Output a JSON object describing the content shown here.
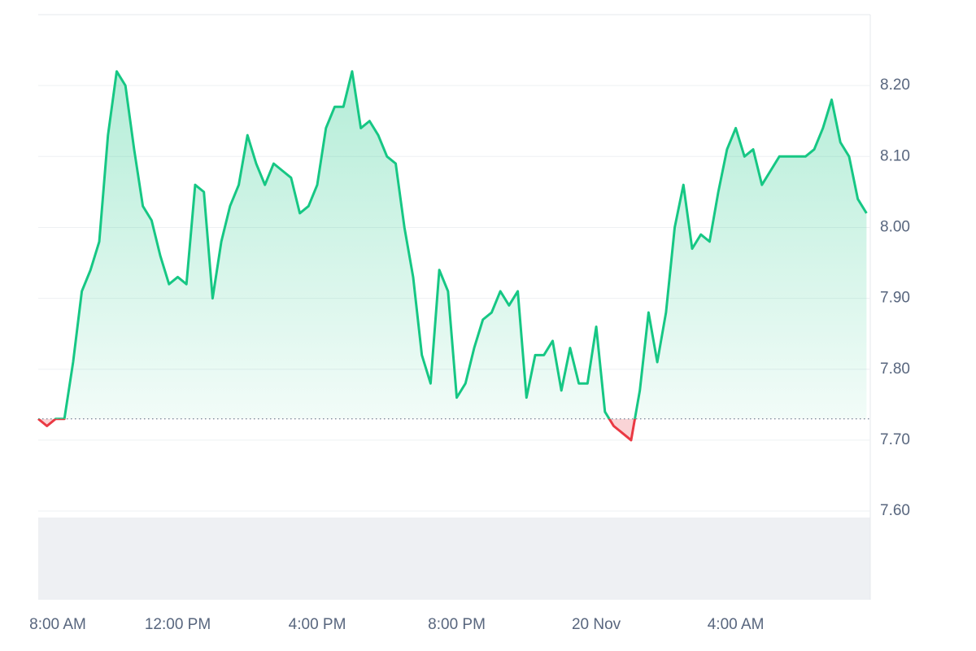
{
  "chart_data": {
    "type": "baseline-line",
    "categories": [
      "8:00 AM",
      null,
      null,
      null,
      null,
      null,
      null,
      null,
      null,
      null,
      null,
      null,
      null,
      null,
      null,
      null,
      "12:00 PM",
      null,
      null,
      null,
      null,
      null,
      null,
      null,
      null,
      null,
      null,
      null,
      null,
      null,
      null,
      null,
      "4:00 PM",
      null,
      null,
      null,
      null,
      null,
      null,
      null,
      null,
      null,
      null,
      null,
      null,
      null,
      null,
      null,
      "8:00 PM",
      null,
      null,
      null,
      null,
      null,
      null,
      null,
      null,
      null,
      null,
      null,
      null,
      null,
      null,
      null,
      "20 Nov",
      null,
      null,
      null,
      null,
      null,
      null,
      null,
      null,
      null,
      null,
      null,
      null,
      null,
      null,
      null,
      "4:00 AM",
      null,
      null,
      null,
      null,
      null,
      null,
      null,
      null,
      null,
      null,
      null,
      null,
      null,
      null,
      null
    ],
    "values": [
      7.73,
      7.72,
      7.73,
      7.73,
      7.81,
      7.91,
      7.94,
      7.98,
      8.13,
      8.22,
      8.2,
      8.11,
      8.03,
      8.01,
      7.96,
      7.92,
      7.93,
      7.92,
      8.06,
      8.05,
      7.9,
      7.98,
      8.03,
      8.06,
      8.13,
      8.09,
      8.06,
      8.09,
      8.08,
      8.07,
      8.02,
      8.03,
      8.06,
      8.14,
      8.17,
      8.17,
      8.22,
      8.14,
      8.15,
      8.13,
      8.1,
      8.09,
      8.0,
      7.93,
      7.82,
      7.78,
      7.94,
      7.91,
      7.76,
      7.78,
      7.83,
      7.87,
      7.88,
      7.91,
      7.89,
      7.91,
      7.76,
      7.82,
      7.82,
      7.84,
      7.77,
      7.83,
      7.78,
      7.78,
      7.86,
      7.74,
      7.72,
      7.71,
      7.7,
      7.77,
      7.88,
      7.81,
      7.88,
      8.0,
      8.06,
      7.97,
      7.99,
      7.98,
      8.05,
      8.11,
      8.14,
      8.1,
      8.11,
      8.06,
      8.08,
      8.1,
      8.1,
      8.1,
      8.1,
      8.11,
      8.14,
      8.18,
      8.12,
      8.1,
      8.04,
      8.02
    ],
    "baseline": 7.73,
    "color_up": "#16c784",
    "color_down": "#ea3943",
    "ylim": [
      7.475,
      8.3
    ],
    "yticks": [
      {
        "value": 7.6,
        "label": "7.60"
      },
      {
        "value": 7.7,
        "label": "7.70"
      },
      {
        "value": 7.8,
        "label": "7.80"
      },
      {
        "value": 7.9,
        "label": "7.90"
      },
      {
        "value": 8.0,
        "label": "8.00"
      },
      {
        "value": 8.1,
        "label": "8.10"
      },
      {
        "value": 8.2,
        "label": "8.20"
      }
    ],
    "grid": true
  }
}
